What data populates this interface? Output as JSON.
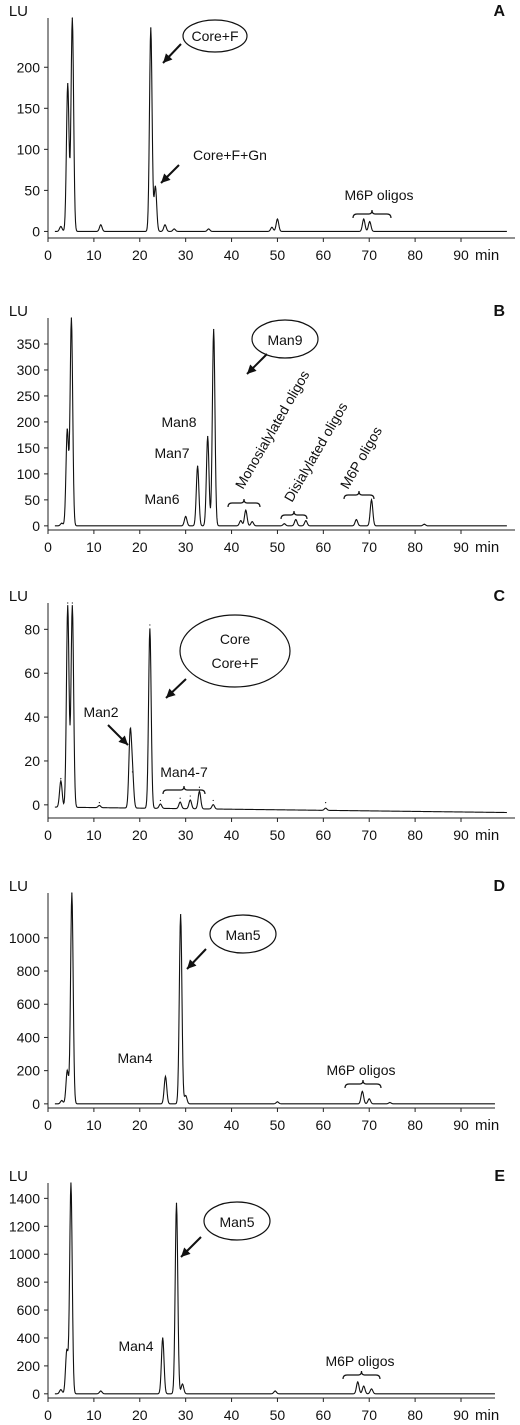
{
  "chart_data": [
    {
      "type": "line",
      "panel_letter": "A",
      "ylabel": "LU",
      "xunit": "min",
      "xlim": [
        0,
        100
      ],
      "ylim": [
        -8,
        260
      ],
      "yticks": [
        0,
        50,
        100,
        150,
        200
      ],
      "xticks": [
        0,
        10,
        20,
        30,
        40,
        50,
        60,
        70,
        80,
        90
      ],
      "baseline": 0,
      "peaks": [
        {
          "x": 2.8,
          "y": 6
        },
        {
          "x": 4.3,
          "y": 180
        },
        {
          "x": 5.3,
          "y": 260
        },
        {
          "x": 11.5,
          "y": 8
        },
        {
          "x": 22.4,
          "y": 248
        },
        {
          "x": 23.4,
          "y": 55
        },
        {
          "x": 25.5,
          "y": 8
        },
        {
          "x": 27.5,
          "y": 3
        },
        {
          "x": 35.0,
          "y": 3
        },
        {
          "x": 48.8,
          "y": 5
        },
        {
          "x": 50.0,
          "y": 15
        },
        {
          "x": 68.8,
          "y": 15
        },
        {
          "x": 70.1,
          "y": 12
        }
      ],
      "annotations": [
        {
          "text": "Core+F",
          "boxed": true
        },
        {
          "text": "Core+F+Gn",
          "boxed": false
        },
        {
          "text": "M6P oligos",
          "boxed": false
        }
      ]
    },
    {
      "type": "line",
      "panel_letter": "B",
      "ylabel": "LU",
      "xunit": "min",
      "xlim": [
        0,
        100
      ],
      "ylim": [
        -8,
        400
      ],
      "yticks": [
        0,
        50,
        100,
        150,
        200,
        250,
        300,
        350
      ],
      "xticks": [
        0,
        10,
        20,
        30,
        40,
        50,
        60,
        70,
        80,
        90
      ],
      "baseline": 0,
      "peaks": [
        {
          "x": 3.0,
          "y": 5
        },
        {
          "x": 4.2,
          "y": 185
        },
        {
          "x": 5.1,
          "y": 400
        },
        {
          "x": 30.0,
          "y": 18
        },
        {
          "x": 32.6,
          "y": 115
        },
        {
          "x": 34.8,
          "y": 172
        },
        {
          "x": 36.1,
          "y": 378
        },
        {
          "x": 42.0,
          "y": 10
        },
        {
          "x": 43.1,
          "y": 30
        },
        {
          "x": 44.5,
          "y": 8
        },
        {
          "x": 51.5,
          "y": 4
        },
        {
          "x": 54.0,
          "y": 12
        },
        {
          "x": 56.2,
          "y": 10
        },
        {
          "x": 67.2,
          "y": 12
        },
        {
          "x": 70.5,
          "y": 50
        },
        {
          "x": 82.0,
          "y": 3
        }
      ],
      "annotations": [
        {
          "text": "Man9",
          "boxed": true
        },
        {
          "text": "Man8",
          "boxed": false
        },
        {
          "text": "Man7",
          "boxed": false
        },
        {
          "text": "Man6",
          "boxed": false
        },
        {
          "text": "Monosialylated oligos",
          "boxed": false
        },
        {
          "text": "Disialylated oligos",
          "boxed": false
        },
        {
          "text": "M6P oligos",
          "boxed": false
        }
      ]
    },
    {
      "type": "line",
      "panel_letter": "C",
      "ylabel": "LU",
      "xunit": "min",
      "xlim": [
        0,
        100
      ],
      "ylim": [
        -6,
        92
      ],
      "yticks": [
        0,
        20,
        40,
        60,
        80
      ],
      "xticks": [
        0,
        10,
        20,
        30,
        40,
        50,
        60,
        70,
        80,
        90
      ],
      "baseline": -1,
      "baseline_end": -3.5,
      "peaks": [
        {
          "x": 2.8,
          "y": 12
        },
        {
          "x": 4.3,
          "y": 92
        },
        {
          "x": 5.3,
          "y": 92
        },
        {
          "x": 11.2,
          "y": 1
        },
        {
          "x": 17.9,
          "y": 33
        },
        {
          "x": 18.4,
          "y": 15
        },
        {
          "x": 22.2,
          "y": 82
        },
        {
          "x": 24.5,
          "y": 2
        },
        {
          "x": 28.8,
          "y": 3
        },
        {
          "x": 31.0,
          "y": 4
        },
        {
          "x": 33.0,
          "y": 8
        },
        {
          "x": 36.0,
          "y": 2
        },
        {
          "x": 60.5,
          "y": 1
        }
      ],
      "annotations": [
        {
          "text": "Core",
          "boxed": true
        },
        {
          "text": "Core+F",
          "boxed": true
        },
        {
          "text": "Man2",
          "boxed": false
        },
        {
          "text": "Man4-7",
          "boxed": false
        }
      ]
    },
    {
      "type": "line",
      "panel_letter": "D",
      "ylabel": "LU",
      "xunit": "min",
      "xlim": [
        0,
        100
      ],
      "ylim": [
        -25,
        1270
      ],
      "yticks": [
        0,
        200,
        400,
        600,
        800,
        1000
      ],
      "xticks": [
        0,
        10,
        20,
        30,
        40,
        50,
        60,
        70,
        80,
        90
      ],
      "baseline": 0,
      "peaks": [
        {
          "x": 3.0,
          "y": 20
        },
        {
          "x": 4.2,
          "y": 200
        },
        {
          "x": 5.2,
          "y": 1270
        },
        {
          "x": 25.6,
          "y": 165
        },
        {
          "x": 28.9,
          "y": 1140
        },
        {
          "x": 30.0,
          "y": 50
        },
        {
          "x": 50.0,
          "y": 12
        },
        {
          "x": 68.5,
          "y": 75
        },
        {
          "x": 70.0,
          "y": 30
        },
        {
          "x": 74.5,
          "y": 8
        }
      ],
      "annotations": [
        {
          "text": "Man5",
          "boxed": true
        },
        {
          "text": "Man4",
          "boxed": false
        },
        {
          "text": "M6P oligos",
          "boxed": false
        }
      ]
    },
    {
      "type": "line",
      "panel_letter": "E",
      "ylabel": "LU",
      "xunit": "min",
      "xlim": [
        0,
        100
      ],
      "ylim": [
        -30,
        1510
      ],
      "yticks": [
        0,
        200,
        400,
        600,
        800,
        1000,
        1200,
        1400
      ],
      "xticks": [
        0,
        10,
        20,
        30,
        40,
        50,
        60,
        70,
        80,
        90
      ],
      "baseline": 0,
      "peaks": [
        {
          "x": 2.8,
          "y": 30
        },
        {
          "x": 4.1,
          "y": 310
        },
        {
          "x": 5.0,
          "y": 1510
        },
        {
          "x": 11.5,
          "y": 20
        },
        {
          "x": 25.0,
          "y": 400
        },
        {
          "x": 28.0,
          "y": 1365
        },
        {
          "x": 29.3,
          "y": 70
        },
        {
          "x": 49.5,
          "y": 20
        },
        {
          "x": 67.5,
          "y": 85
        },
        {
          "x": 68.8,
          "y": 55
        },
        {
          "x": 70.5,
          "y": 35
        }
      ],
      "annotations": [
        {
          "text": "Man5",
          "boxed": true
        },
        {
          "text": "Man4",
          "boxed": false
        },
        {
          "text": "M6P oligos",
          "boxed": false
        }
      ]
    }
  ]
}
